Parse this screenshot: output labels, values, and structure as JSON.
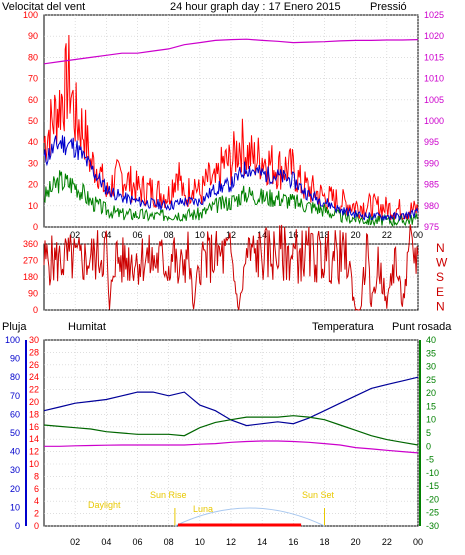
{
  "header": {
    "wind_label": "Velocitat del vent",
    "title": "24 hour graph day : 17 Enero 2015",
    "pressure_label": "Pressió"
  },
  "bottom_header": {
    "rain_label": "Pluja",
    "humidity_label": "Humitat",
    "temp_label": "Temperatura",
    "dew_label": "Punt rosada"
  },
  "astro": {
    "daylight": "Daylight",
    "sun_rise": "Sun Rise",
    "sun_set": "Sun Set",
    "moon": "Luna",
    "sun_rise_hour": 8.4,
    "sun_set_hour": 18.0
  },
  "colors": {
    "wind_gust": "#ff0000",
    "wind_avg": "#0000cc",
    "wind_low": "#008000",
    "pressure": "#cc00cc",
    "direction": "#cc0000",
    "humidity": "#000099",
    "temperature": "#006600",
    "dewpoint": "#cc00cc",
    "rain": "#ff0000",
    "astro": "#e8c800"
  },
  "chart_data": [
    {
      "type": "line",
      "id": "wind_pressure",
      "x_ticks": [
        "02",
        "04",
        "06",
        "08",
        "10",
        "12",
        "14",
        "16",
        "18",
        "20",
        "22",
        "00"
      ],
      "y_left_ticks": [
        0,
        10,
        20,
        30,
        40,
        50,
        60,
        70,
        80,
        90,
        100
      ],
      "y_right_ticks": [
        975,
        980,
        985,
        990,
        995,
        1000,
        1005,
        1010,
        1015,
        1020,
        1025
      ],
      "ylim_left": [
        0,
        100
      ],
      "ylim_right": [
        975,
        1025
      ],
      "grid": true,
      "series": [
        {
          "key": "gust",
          "hours": [
            0,
            1,
            1.6,
            2,
            2.6,
            3,
            3.5,
            4,
            4.5,
            5,
            6,
            7,
            8,
            8.6,
            9,
            9.6,
            10,
            10.5,
            11,
            11.5,
            12,
            12.6,
            13,
            13.5,
            14,
            14.5,
            15,
            15.5,
            16,
            16.5,
            17,
            17.5,
            18,
            19,
            20,
            21,
            22,
            23,
            24
          ],
          "values": [
            40,
            58,
            70,
            52,
            45,
            30,
            28,
            15,
            22,
            24,
            18,
            17,
            15,
            28,
            12,
            22,
            15,
            22,
            20,
            30,
            30,
            40,
            35,
            32,
            33,
            30,
            28,
            28,
            27,
            20,
            18,
            16,
            14,
            12,
            10,
            10,
            9,
            8,
            8
          ]
        },
        {
          "key": "avg",
          "hours": [
            0,
            1,
            2,
            3,
            4,
            5,
            6,
            7,
            8,
            9,
            10,
            11,
            12,
            13,
            14,
            15,
            16,
            17,
            18,
            19,
            20,
            21,
            22,
            23,
            24
          ],
          "values": [
            32,
            40,
            38,
            28,
            18,
            14,
            12,
            11,
            10,
            12,
            12,
            18,
            20,
            28,
            25,
            24,
            22,
            15,
            12,
            8,
            6,
            5,
            5,
            5,
            7
          ]
        },
        {
          "key": "low",
          "hours": [
            0,
            1,
            2,
            3,
            4,
            5,
            6,
            7,
            8,
            9,
            10,
            11,
            12,
            13,
            14,
            15,
            16,
            17,
            18,
            19,
            20,
            21,
            22,
            23,
            24
          ],
          "values": [
            14,
            22,
            20,
            12,
            8,
            6,
            6,
            5,
            6,
            6,
            6,
            10,
            12,
            16,
            14,
            14,
            12,
            10,
            8,
            5,
            4,
            3,
            3,
            3,
            4
          ]
        },
        {
          "key": "pressure",
          "hours": [
            0,
            1,
            2,
            3,
            4,
            5,
            6,
            7,
            8,
            9,
            10,
            11,
            12,
            13,
            14,
            15,
            16,
            17,
            18,
            19,
            20,
            21,
            22,
            23,
            24
          ],
          "values": [
            1013.5,
            1014,
            1014.5,
            1015,
            1015.5,
            1016,
            1016,
            1016.5,
            1017,
            1018,
            1018.5,
            1019,
            1019.2,
            1019.3,
            1019,
            1018.8,
            1018.5,
            1018.6,
            1018.7,
            1018.9,
            1019,
            1019,
            1019.1,
            1019.1,
            1019.2
          ]
        }
      ]
    },
    {
      "type": "line",
      "id": "wind_direction",
      "y_ticks": [
        0,
        90,
        180,
        270,
        360
      ],
      "direction_labels": [
        "N",
        "W",
        "S",
        "E",
        "N"
      ],
      "ylim": [
        0,
        360
      ],
      "grid": true,
      "series": [
        {
          "key": "direction",
          "hours": [
            0,
            1,
            1.5,
            2,
            2.5,
            3,
            3.5,
            4,
            4.2,
            4.5,
            5,
            5.5,
            6,
            6.5,
            7,
            7.5,
            8,
            8.3,
            8.6,
            9,
            9.3,
            9.6,
            10,
            11,
            12,
            12.5,
            13,
            13.5,
            14,
            15,
            16,
            17,
            18,
            19,
            19.5,
            20,
            20.3,
            20.7,
            21,
            21.5,
            22,
            22.5,
            23,
            23.5,
            24
          ],
          "values": [
            270,
            270,
            280,
            275,
            270,
            280,
            300,
            330,
            0,
            300,
            260,
            280,
            270,
            290,
            260,
            280,
            230,
            330,
            180,
            280,
            300,
            0,
            280,
            290,
            300,
            0,
            300,
            300,
            300,
            310,
            300,
            300,
            290,
            290,
            280,
            0,
            0,
            330,
            30,
            270,
            20,
            300,
            30,
            320,
            300
          ]
        }
      ]
    },
    {
      "type": "line",
      "id": "humidity_temperature",
      "y_rain_ticks": [
        0,
        10,
        20,
        30,
        40,
        50,
        60,
        70,
        80,
        90,
        100
      ],
      "y_humidity_ticks": [
        0,
        2,
        4,
        6,
        8,
        10,
        12,
        14,
        16,
        18,
        20,
        22,
        24,
        26,
        28,
        30
      ],
      "y_temp_ticks": [
        -30,
        -25,
        -20,
        -15,
        -10,
        -5,
        0,
        5,
        10,
        15,
        20,
        25,
        30,
        35,
        40
      ],
      "ylim_rain": [
        0,
        100
      ],
      "ylim_temp": [
        -30,
        40
      ],
      "grid": true,
      "series": [
        {
          "key": "humidity",
          "unit_axis": "rain",
          "hours": [
            0,
            1,
            2,
            3,
            4,
            5,
            6,
            7,
            8,
            9,
            10,
            11,
            12,
            13,
            14,
            15,
            16,
            17,
            18,
            19,
            20,
            21,
            22,
            23,
            24
          ],
          "values": [
            62,
            64,
            66,
            67,
            68,
            70,
            72,
            72,
            70,
            72,
            65,
            62,
            57,
            54,
            55,
            56,
            55,
            58,
            62,
            66,
            70,
            74,
            76,
            78,
            80
          ]
        },
        {
          "key": "temperature",
          "unit_axis": "temp",
          "hours": [
            0,
            1,
            2,
            3,
            4,
            5,
            6,
            7,
            8,
            9,
            10,
            11,
            12,
            13,
            14,
            15,
            16,
            17,
            18,
            19,
            20,
            21,
            22,
            23,
            24
          ],
          "values": [
            8,
            7.5,
            7,
            6.5,
            5.5,
            5,
            4.5,
            4.5,
            4.5,
            4,
            7,
            9,
            10,
            11,
            11,
            11,
            11.5,
            11,
            10,
            8,
            6,
            4,
            2.5,
            1.5,
            0.5
          ]
        },
        {
          "key": "dewpoint",
          "unit_axis": "temp",
          "hours": [
            0,
            1,
            2,
            3,
            4,
            5,
            6,
            7,
            8,
            9,
            10,
            11,
            12,
            13,
            14,
            15,
            16,
            17,
            18,
            19,
            20,
            21,
            22,
            23,
            24
          ],
          "values": [
            0,
            0,
            0.2,
            0.3,
            0.4,
            0.5,
            0.5,
            0.5,
            0.5,
            0.5,
            0.8,
            1,
            1.5,
            1.8,
            2,
            2,
            1.8,
            1.5,
            1,
            0.5,
            -0.5,
            -1,
            -1.5,
            -2,
            -2.5
          ]
        }
      ]
    }
  ]
}
